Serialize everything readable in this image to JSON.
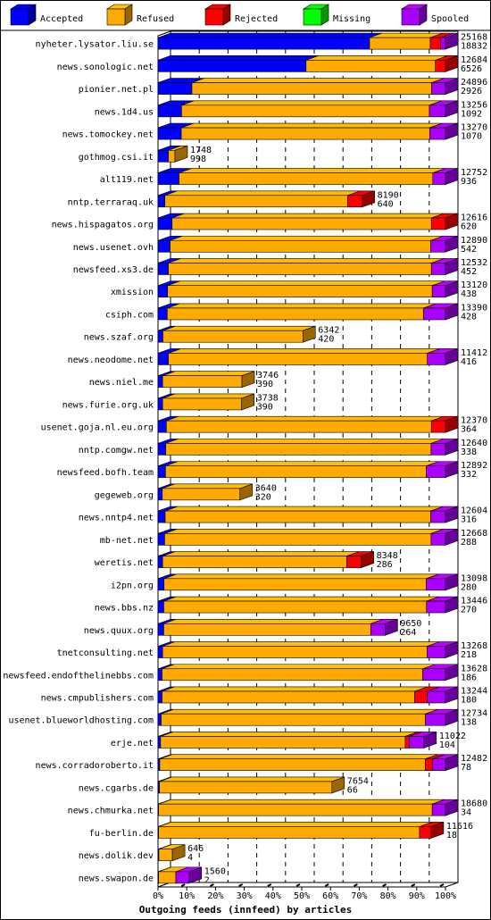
{
  "chart_data": {
    "type": "bar",
    "orientation": "horizontal",
    "stacked": true,
    "percent_axis": true,
    "xlabel": "Outgoing feeds (innfeed) by articles",
    "xlim": [
      0,
      100
    ],
    "x_ticks": [
      "0%",
      "10%",
      "20%",
      "30%",
      "40%",
      "50%",
      "60%",
      "70%",
      "80%",
      "90%",
      "100%"
    ],
    "grid": "vertical dashed",
    "legend_position": "top",
    "series": [
      {
        "name": "Accepted",
        "color": "#0000ff"
      },
      {
        "name": "Refused",
        "color": "#ffaa00"
      },
      {
        "name": "Rejected",
        "color": "#ff0000"
      },
      {
        "name": "Missing",
        "color": "#00ff00"
      },
      {
        "name": "Spooled",
        "color": "#aa00ff"
      }
    ],
    "rows": [
      {
        "name": "nyheter.lysator.liu.se",
        "l1": "25168",
        "l2": "18832",
        "p": [
          73.6,
          21.1,
          3.7,
          0,
          1.6
        ]
      },
      {
        "name": "news.sonologic.net",
        "l1": "12684",
        "l2": "6526",
        "p": [
          51.5,
          45.0,
          3.5,
          0,
          0
        ]
      },
      {
        "name": "pionier.net.pl",
        "l1": "24896",
        "l2": "2926",
        "p": [
          11.8,
          83.4,
          0,
          0,
          4.8
        ]
      },
      {
        "name": "news.1d4.us",
        "l1": "13256",
        "l2": "1092",
        "p": [
          8.2,
          86.2,
          0,
          0,
          5.6
        ]
      },
      {
        "name": "news.tomockey.net",
        "l1": "13270",
        "l2": "1070",
        "p": [
          8.1,
          86.4,
          0,
          0,
          5.5
        ]
      },
      {
        "name": "gothmog.csi.it",
        "l1": "1748",
        "l2": "998",
        "p": [
          3.6,
          2.3,
          0,
          0,
          0
        ]
      },
      {
        "name": "alt119.net",
        "l1": "12752",
        "l2": "936",
        "p": [
          7.3,
          88.3,
          0,
          0,
          4.4
        ]
      },
      {
        "name": "nntp.terraraq.uk",
        "l1": "8190",
        "l2": "640",
        "p": [
          2.4,
          63.6,
          5.0,
          0,
          0
        ]
      },
      {
        "name": "news.hispagatos.org",
        "l1": "12616",
        "l2": "620",
        "p": [
          4.9,
          90.2,
          4.9,
          0,
          0
        ]
      },
      {
        "name": "news.usenet.ovh",
        "l1": "12890",
        "l2": "542",
        "p": [
          4.2,
          90.7,
          0,
          0,
          5.1
        ]
      },
      {
        "name": "newsfeed.xs3.de",
        "l1": "12532",
        "l2": "452",
        "p": [
          3.6,
          91.5,
          0,
          0,
          4.9
        ]
      },
      {
        "name": "xmission",
        "l1": "13120",
        "l2": "438",
        "p": [
          3.3,
          92.1,
          0,
          0,
          4.6
        ]
      },
      {
        "name": "csiph.com",
        "l1": "13390",
        "l2": "428",
        "p": [
          3.2,
          89.2,
          0,
          0,
          7.6
        ]
      },
      {
        "name": "news.szaf.org",
        "l1": "6342",
        "l2": "420",
        "p": [
          1.7,
          48.7,
          0,
          0,
          0
        ]
      },
      {
        "name": "news.neodome.net",
        "l1": "11412",
        "l2": "416",
        "p": [
          3.6,
          90.1,
          0,
          0,
          6.3
        ]
      },
      {
        "name": "news.niel.me",
        "l1": "3746",
        "l2": "390",
        "p": [
          1.6,
          27.6,
          0,
          0,
          0
        ]
      },
      {
        "name": "news.furie.org.uk",
        "l1": "3738",
        "l2": "390",
        "p": [
          1.6,
          27.5,
          0,
          0,
          0
        ]
      },
      {
        "name": "usenet.goja.nl.eu.org",
        "l1": "12370",
        "l2": "364",
        "p": [
          2.9,
          92.2,
          4.9,
          0,
          0
        ]
      },
      {
        "name": "nntp.comgw.net",
        "l1": "12640",
        "l2": "338",
        "p": [
          2.7,
          92.3,
          0,
          0,
          5.0
        ]
      },
      {
        "name": "newsfeed.bofh.team",
        "l1": "12892",
        "l2": "332",
        "p": [
          2.6,
          90.7,
          0,
          0,
          6.7
        ]
      },
      {
        "name": "gegeweb.org",
        "l1": "3640",
        "l2": "320",
        "p": [
          1.5,
          27.0,
          0,
          0,
          0
        ]
      },
      {
        "name": "news.nntp4.net",
        "l1": "12604",
        "l2": "316",
        "p": [
          2.5,
          92.4,
          0,
          0,
          5.1
        ]
      },
      {
        "name": "mb-net.net",
        "l1": "12668",
        "l2": "288",
        "p": [
          2.3,
          92.7,
          0,
          0,
          5.0
        ]
      },
      {
        "name": "weretis.net",
        "l1": "8348",
        "l2": "286",
        "p": [
          1.6,
          64.1,
          5.0,
          0,
          0
        ]
      },
      {
        "name": "i2pn.org",
        "l1": "13098",
        "l2": "280",
        "p": [
          2.1,
          91.2,
          0,
          0,
          6.7
        ]
      },
      {
        "name": "news.bbs.nz",
        "l1": "13446",
        "l2": "270",
        "p": [
          2.0,
          91.4,
          0,
          0,
          6.6
        ]
      },
      {
        "name": "news.quux.org",
        "l1": "9650",
        "l2": "264",
        "p": [
          2.0,
          72.0,
          0,
          0,
          5.0
        ]
      },
      {
        "name": "tnetconsulting.net",
        "l1": "13268",
        "l2": "218",
        "p": [
          1.6,
          92.0,
          0,
          0,
          6.4
        ]
      },
      {
        "name": "newsfeed.endofthelinebbs.com",
        "l1": "13628",
        "l2": "186",
        "p": [
          1.4,
          90.7,
          0,
          0,
          7.9
        ]
      },
      {
        "name": "news.cmpublishers.com",
        "l1": "13244",
        "l2": "180",
        "p": [
          1.4,
          87.9,
          4.4,
          0,
          6.3
        ]
      },
      {
        "name": "usenet.blueworldhosting.com",
        "l1": "12734",
        "l2": "138",
        "p": [
          1.1,
          91.9,
          0,
          0,
          7.0
        ]
      },
      {
        "name": "erje.net",
        "l1": "11022",
        "l2": "104",
        "p": [
          0.9,
          85.1,
          1.4,
          0,
          5.1
        ]
      },
      {
        "name": "news.corradoroberto.it",
        "l1": "12482",
        "l2": "78",
        "p": [
          0.6,
          92.4,
          2.5,
          0,
          4.5
        ]
      },
      {
        "name": "news.cgarbs.de",
        "l1": "7654",
        "l2": "66",
        "p": [
          0.5,
          60.0,
          0,
          0,
          0
        ]
      },
      {
        "name": "news.chmurka.net",
        "l1": "18680",
        "l2": "34",
        "p": [
          0.2,
          95.2,
          0,
          0,
          4.6
        ]
      },
      {
        "name": "fu-berlin.de",
        "l1": "11616",
        "l2": "18",
        "p": [
          0.2,
          90.8,
          4.0,
          0,
          0
        ]
      },
      {
        "name": "news.dolik.dev",
        "l1": "646",
        "l2": "4",
        "p": [
          0.3,
          4.7,
          0,
          0,
          0
        ]
      },
      {
        "name": "news.swapon.de",
        "l1": "1560",
        "l2": "2",
        "p": [
          0.2,
          6.0,
          0,
          0,
          4.6
        ]
      }
    ]
  }
}
